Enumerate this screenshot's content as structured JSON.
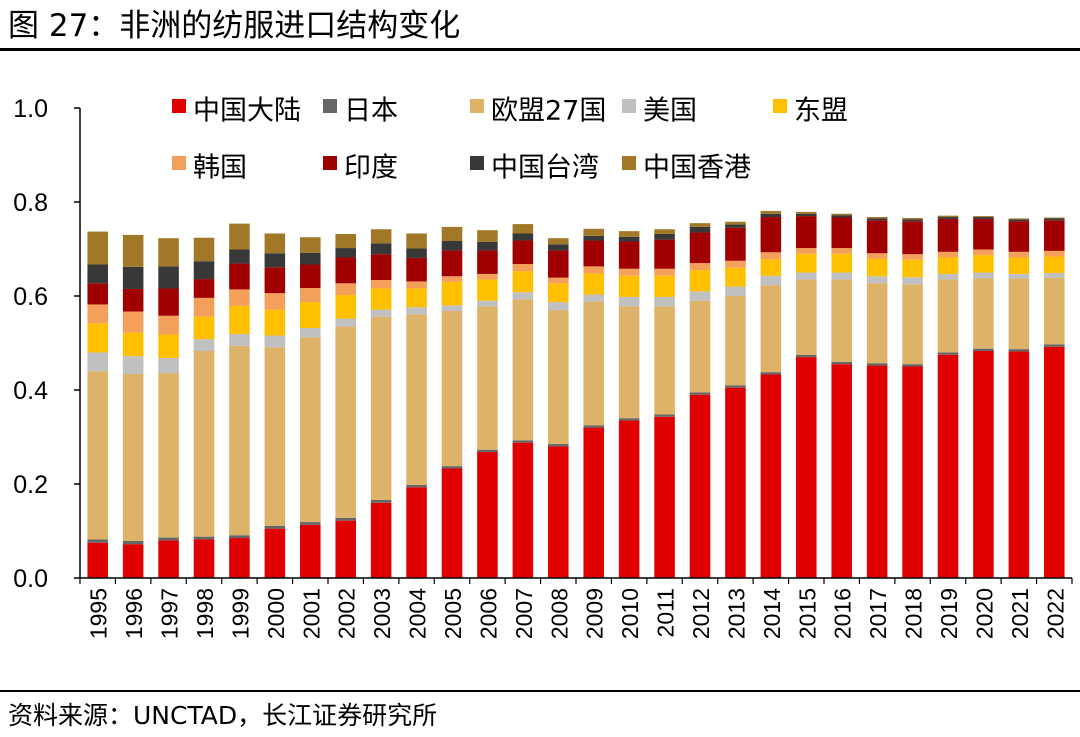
{
  "page": {
    "title": "图 27：非洲的纺服进口结构变化",
    "source": "资料来源：UNCTAD，长江证券研究所"
  },
  "chart_data": {
    "type": "bar",
    "stacked": true,
    "grid": false,
    "legend_position": "top",
    "ylim": [
      0,
      1.0
    ],
    "yticks": [
      "0.0",
      "0.2",
      "0.4",
      "0.6",
      "0.8",
      "1.0"
    ],
    "categories": [
      "1995",
      "1996",
      "1997",
      "1998",
      "1999",
      "2000",
      "2001",
      "2002",
      "2003",
      "2004",
      "2005",
      "2006",
      "2007",
      "2008",
      "2009",
      "2010",
      "2011",
      "2012",
      "2013",
      "2014",
      "2015",
      "2016",
      "2017",
      "2018",
      "2019",
      "2020",
      "2021",
      "2022"
    ],
    "series": [
      {
        "name": "中国大陆",
        "color": "#e00000",
        "values": [
          0.075,
          0.072,
          0.08,
          0.082,
          0.085,
          0.105,
          0.113,
          0.122,
          0.16,
          0.193,
          0.233,
          0.268,
          0.288,
          0.28,
          0.32,
          0.335,
          0.343,
          0.39,
          0.405,
          0.433,
          0.47,
          0.455,
          0.452,
          0.45,
          0.475,
          0.483,
          0.482,
          0.492
        ]
      },
      {
        "name": "日本",
        "color": "#666666",
        "values": [
          0.007,
          0.007,
          0.006,
          0.006,
          0.006,
          0.006,
          0.006,
          0.006,
          0.006,
          0.005,
          0.005,
          0.005,
          0.005,
          0.005,
          0.005,
          0.005,
          0.005,
          0.005,
          0.005,
          0.005,
          0.005,
          0.005,
          0.005,
          0.005,
          0.005,
          0.005,
          0.005,
          0.005
        ]
      },
      {
        "name": "欧盟27国",
        "color": "#dcb368",
        "values": [
          0.358,
          0.355,
          0.35,
          0.395,
          0.403,
          0.38,
          0.393,
          0.407,
          0.39,
          0.363,
          0.33,
          0.305,
          0.3,
          0.285,
          0.263,
          0.238,
          0.23,
          0.195,
          0.19,
          0.185,
          0.16,
          0.175,
          0.17,
          0.17,
          0.155,
          0.15,
          0.15,
          0.142
        ]
      },
      {
        "name": "美国",
        "color": "#c0c0c0",
        "values": [
          0.04,
          0.038,
          0.032,
          0.025,
          0.025,
          0.025,
          0.02,
          0.017,
          0.015,
          0.015,
          0.012,
          0.012,
          0.015,
          0.017,
          0.015,
          0.02,
          0.02,
          0.02,
          0.02,
          0.02,
          0.015,
          0.015,
          0.015,
          0.015,
          0.012,
          0.012,
          0.01,
          0.01
        ]
      },
      {
        "name": "东盟",
        "color": "#ffc000",
        "values": [
          0.062,
          0.05,
          0.05,
          0.048,
          0.06,
          0.055,
          0.055,
          0.05,
          0.045,
          0.04,
          0.05,
          0.045,
          0.045,
          0.04,
          0.045,
          0.045,
          0.045,
          0.045,
          0.04,
          0.035,
          0.04,
          0.04,
          0.037,
          0.037,
          0.035,
          0.037,
          0.035,
          0.035
        ]
      },
      {
        "name": "韩国",
        "color": "#f5a05a",
        "values": [
          0.04,
          0.045,
          0.04,
          0.04,
          0.035,
          0.035,
          0.03,
          0.025,
          0.018,
          0.015,
          0.012,
          0.012,
          0.015,
          0.012,
          0.015,
          0.015,
          0.015,
          0.015,
          0.015,
          0.015,
          0.012,
          0.012,
          0.012,
          0.012,
          0.012,
          0.012,
          0.012,
          0.012
        ]
      },
      {
        "name": "印度",
        "color": "#a00000",
        "values": [
          0.045,
          0.048,
          0.058,
          0.04,
          0.055,
          0.055,
          0.05,
          0.055,
          0.055,
          0.05,
          0.055,
          0.05,
          0.05,
          0.058,
          0.055,
          0.058,
          0.062,
          0.065,
          0.07,
          0.075,
          0.068,
          0.065,
          0.07,
          0.07,
          0.07,
          0.065,
          0.065,
          0.065
        ]
      },
      {
        "name": "中国台湾",
        "color": "#383838",
        "values": [
          0.04,
          0.047,
          0.047,
          0.038,
          0.03,
          0.03,
          0.025,
          0.02,
          0.023,
          0.02,
          0.02,
          0.018,
          0.015,
          0.013,
          0.01,
          0.01,
          0.012,
          0.012,
          0.007,
          0.007,
          0.005,
          0.005,
          0.004,
          0.004,
          0.004,
          0.004,
          0.004,
          0.004
        ]
      },
      {
        "name": "中国香港",
        "color": "#a07828",
        "values": [
          0.07,
          0.068,
          0.06,
          0.05,
          0.055,
          0.042,
          0.033,
          0.03,
          0.03,
          0.032,
          0.03,
          0.025,
          0.02,
          0.013,
          0.015,
          0.012,
          0.01,
          0.008,
          0.006,
          0.006,
          0.004,
          0.003,
          0.003,
          0.003,
          0.003,
          0.002,
          0.002,
          0.002
        ]
      }
    ]
  }
}
